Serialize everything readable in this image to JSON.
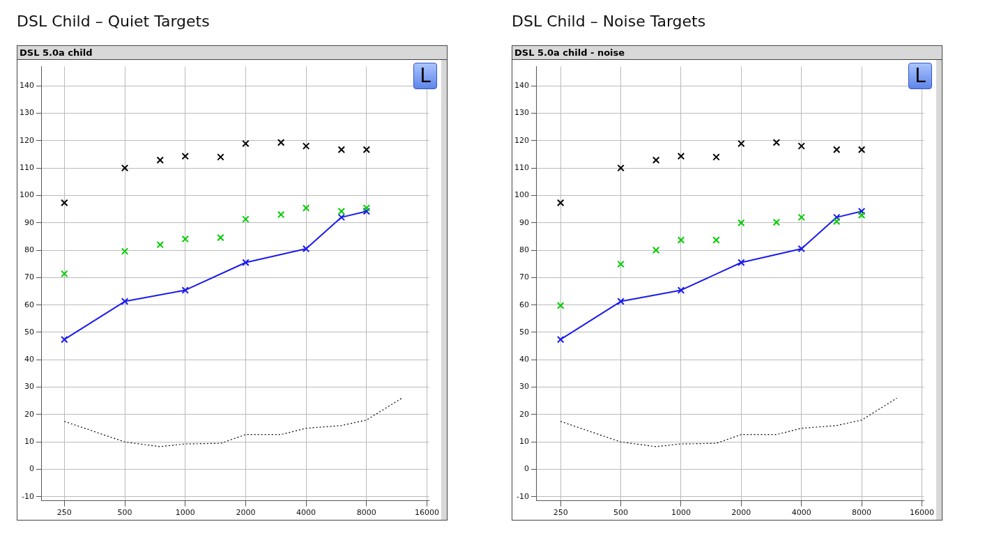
{
  "chart_data": [
    {
      "type": "scatter",
      "title": "DSL Child – Quiet Targets",
      "subtitle": "DSL 5.0a child",
      "annotations": [
        "L"
      ],
      "log": "x",
      "grid": true,
      "legend": false,
      "xlim": [
        193,
        16400
      ],
      "ylim": [
        -11.5,
        147
      ],
      "xticks": [
        250,
        500,
        1000,
        2000,
        4000,
        8000,
        16000
      ],
      "yticks": [
        -10,
        0,
        10,
        20,
        30,
        40,
        50,
        60,
        70,
        80,
        90,
        100,
        110,
        120,
        130,
        140
      ],
      "x": [
        250,
        500,
        750,
        1000,
        1500,
        2000,
        3000,
        4000,
        6000,
        8000
      ],
      "series": [
        {
          "type": "scatter",
          "color": "#000000",
          "marker": "cross",
          "values": [
            97.3,
            110,
            112.9,
            114.3,
            114,
            118.9,
            119.3,
            118,
            116.7,
            116.7
          ]
        },
        {
          "type": "scatter",
          "color": "#00cc00",
          "marker": "cross",
          "values": [
            71.4,
            79.6,
            82,
            84.1,
            84.6,
            91.3,
            93,
            95.4,
            94.2,
            95.4
          ]
        },
        {
          "type": "line",
          "color": "#1a1aee",
          "marker": "cross",
          "line_style": "solid",
          "x": [
            250,
            500,
            1000,
            2000,
            4000,
            6000,
            8000
          ],
          "values": [
            47.4,
            61.3,
            65.4,
            75.5,
            80.5,
            92,
            94.2
          ]
        },
        {
          "type": "line",
          "color": "#000000",
          "marker": "none",
          "line_style": "dotted",
          "x": [
            250,
            500,
            750,
            1000,
            1500,
            2000,
            3000,
            4000,
            6000,
            8000,
            12000
          ],
          "values": [
            17.5,
            10,
            8.3,
            9.3,
            9.5,
            12.7,
            12.7,
            15,
            16,
            18,
            26
          ]
        }
      ]
    },
    {
      "type": "scatter",
      "title": "DSL Child – Noise Targets",
      "subtitle": "DSL 5.0a child - noise",
      "annotations": [
        "L"
      ],
      "log": "x",
      "grid": true,
      "legend": false,
      "xlim": [
        190,
        16400
      ],
      "ylim": [
        -11.5,
        147
      ],
      "xticks": [
        250,
        500,
        1000,
        2000,
        4000,
        8000,
        16000
      ],
      "yticks": [
        -10,
        0,
        10,
        20,
        30,
        40,
        50,
        60,
        70,
        80,
        90,
        100,
        110,
        120,
        130,
        140
      ],
      "x": [
        250,
        500,
        750,
        1000,
        1500,
        2000,
        3000,
        4000,
        6000,
        8000
      ],
      "series": [
        {
          "type": "scatter",
          "color": "#000000",
          "marker": "cross",
          "values": [
            97.3,
            110,
            112.9,
            114.3,
            114,
            118.9,
            119.3,
            118,
            116.7,
            116.7
          ]
        },
        {
          "type": "scatter",
          "color": "#00cc00",
          "marker": "cross",
          "values": [
            59.8,
            74.9,
            80,
            83.7,
            83.7,
            90,
            90.2,
            92,
            90.5,
            92.8
          ]
        },
        {
          "type": "line",
          "color": "#1a1aee",
          "marker": "cross",
          "line_style": "solid",
          "x": [
            250,
            500,
            1000,
            2000,
            4000,
            6000,
            8000
          ],
          "values": [
            47.4,
            61.3,
            65.4,
            75.5,
            80.5,
            92,
            94.2
          ]
        },
        {
          "type": "line",
          "color": "#000000",
          "marker": "none",
          "line_style": "dotted",
          "x": [
            250,
            500,
            750,
            1000,
            1500,
            2000,
            3000,
            4000,
            6000,
            8000,
            12000
          ],
          "values": [
            17.5,
            10,
            8.3,
            9.3,
            9.5,
            12.7,
            12.7,
            15,
            16,
            18,
            26
          ]
        }
      ]
    }
  ]
}
